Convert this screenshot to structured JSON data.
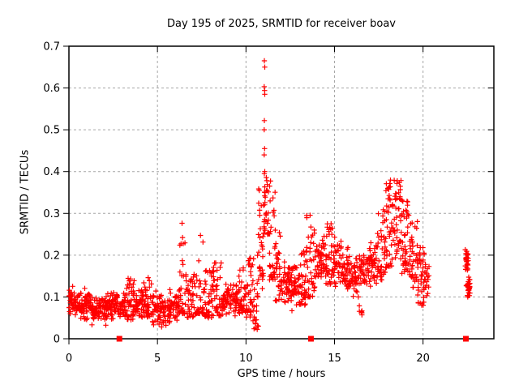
{
  "title": "Day 195 of 2025, SRMTID for receiver boav",
  "chart_data": {
    "type": "scatter",
    "title": "Day 195 of 2025, SRMTID for receiver boav",
    "xlabel": "GPS time / hours",
    "ylabel": "SRMTID / TECUs",
    "xlim": [
      0,
      24
    ],
    "ylim": [
      0,
      0.7
    ],
    "xticks": [
      0,
      5,
      10,
      15,
      20
    ],
    "yticks": [
      0,
      0.1,
      0.2,
      0.3,
      0.4,
      0.5,
      0.6,
      0.7
    ],
    "grid": true,
    "legend": "none",
    "marker_color": "#ff0000",
    "grid_color": "#a6a6a6",
    "axis_color": "#000000",
    "seed": 42,
    "max_point": [
      11.05,
      0.665
    ],
    "series": [
      {
        "name": "SRMTID values",
        "marker": "plus",
        "bands_format": [
          "t_start",
          "t_end",
          "y_min",
          "y_max",
          "count",
          "bottom_bias"
        ],
        "bands": [
          [
            0.0,
            0.3,
            0.05,
            0.13,
            30,
            0
          ],
          [
            0.3,
            0.8,
            0.045,
            0.115,
            45,
            0
          ],
          [
            0.8,
            1.25,
            0.04,
            0.125,
            45,
            0
          ],
          [
            1.25,
            1.7,
            0.03,
            0.105,
            45,
            0
          ],
          [
            1.7,
            2.2,
            0.03,
            0.11,
            48,
            0
          ],
          [
            2.2,
            2.7,
            0.04,
            0.12,
            48,
            0
          ],
          [
            2.7,
            3.2,
            0.04,
            0.115,
            45,
            0
          ],
          [
            3.2,
            3.7,
            0.045,
            0.145,
            45,
            0.6
          ],
          [
            3.7,
            4.2,
            0.04,
            0.125,
            45,
            0
          ],
          [
            4.2,
            4.7,
            0.05,
            0.15,
            42,
            0.6
          ],
          [
            4.7,
            5.2,
            0.03,
            0.12,
            42,
            0
          ],
          [
            5.2,
            5.7,
            0.02,
            0.115,
            40,
            0
          ],
          [
            5.7,
            6.2,
            0.03,
            0.13,
            40,
            0
          ],
          [
            6.2,
            6.6,
            0.06,
            0.285,
            34,
            1.8
          ],
          [
            6.6,
            7.1,
            0.05,
            0.155,
            40,
            0.5
          ],
          [
            7.1,
            7.6,
            0.06,
            0.26,
            36,
            1.8
          ],
          [
            7.6,
            8.1,
            0.05,
            0.165,
            40,
            0.4
          ],
          [
            8.1,
            8.6,
            0.055,
            0.185,
            40,
            0.6
          ],
          [
            8.6,
            9.1,
            0.05,
            0.14,
            40,
            0
          ],
          [
            9.1,
            9.6,
            0.05,
            0.135,
            40,
            0
          ],
          [
            9.6,
            10.0,
            0.06,
            0.17,
            34,
            0.4
          ],
          [
            10.0,
            10.35,
            0.05,
            0.22,
            30,
            0.5
          ],
          [
            10.35,
            10.7,
            0.02,
            0.2,
            26,
            0.4
          ],
          [
            10.7,
            11.0,
            0.12,
            0.36,
            30,
            0.7
          ],
          [
            11.0,
            11.3,
            0.25,
            0.39,
            32,
            0.6
          ],
          [
            11.3,
            11.65,
            0.14,
            0.38,
            30,
            0.8
          ],
          [
            11.65,
            12.0,
            0.09,
            0.26,
            34,
            0.6
          ],
          [
            12.0,
            12.5,
            0.07,
            0.2,
            46,
            0
          ],
          [
            12.5,
            13.0,
            0.06,
            0.185,
            46,
            0
          ],
          [
            13.0,
            13.4,
            0.08,
            0.21,
            36,
            0.4
          ],
          [
            13.4,
            13.9,
            0.1,
            0.315,
            40,
            0.8
          ],
          [
            13.9,
            14.4,
            0.12,
            0.26,
            42,
            0
          ],
          [
            14.4,
            14.9,
            0.13,
            0.285,
            42,
            0.3
          ],
          [
            14.9,
            15.4,
            0.11,
            0.25,
            42,
            0
          ],
          [
            15.4,
            15.9,
            0.1,
            0.225,
            40,
            0
          ],
          [
            15.9,
            16.4,
            0.09,
            0.2,
            40,
            0
          ],
          [
            16.38,
            16.55,
            0.05,
            0.08,
            6,
            0
          ],
          [
            16.4,
            16.9,
            0.11,
            0.225,
            36,
            0
          ],
          [
            16.9,
            17.4,
            0.12,
            0.245,
            40,
            0
          ],
          [
            17.4,
            17.9,
            0.14,
            0.31,
            42,
            0.4
          ],
          [
            17.9,
            18.4,
            0.17,
            0.385,
            46,
            0.3
          ],
          [
            18.4,
            18.8,
            0.19,
            0.38,
            40,
            0.2
          ],
          [
            18.8,
            19.2,
            0.15,
            0.335,
            40,
            0.3
          ],
          [
            19.2,
            19.7,
            0.12,
            0.285,
            40,
            0.3
          ],
          [
            19.7,
            20.1,
            0.08,
            0.225,
            40,
            0.2
          ],
          [
            20.1,
            20.35,
            0.08,
            0.185,
            18,
            0
          ],
          [
            22.38,
            22.56,
            0.155,
            0.225,
            26,
            0
          ],
          [
            22.44,
            22.65,
            0.098,
            0.155,
            26,
            0
          ]
        ],
        "spike_points": [
          [
            11.04,
            0.665
          ],
          [
            11.06,
            0.65
          ],
          [
            11.03,
            0.603
          ],
          [
            11.05,
            0.594
          ],
          [
            11.06,
            0.585
          ],
          [
            11.04,
            0.522
          ],
          [
            11.03,
            0.5
          ],
          [
            11.05,
            0.455
          ],
          [
            11.03,
            0.44
          ],
          [
            11.06,
            0.4
          ],
          [
            11.04,
            0.395
          ]
        ]
      },
      {
        "name": "event flags",
        "marker": "filled-square",
        "points": [
          [
            2.85,
            0
          ],
          [
            13.67,
            0
          ],
          [
            22.42,
            0
          ]
        ]
      }
    ]
  }
}
